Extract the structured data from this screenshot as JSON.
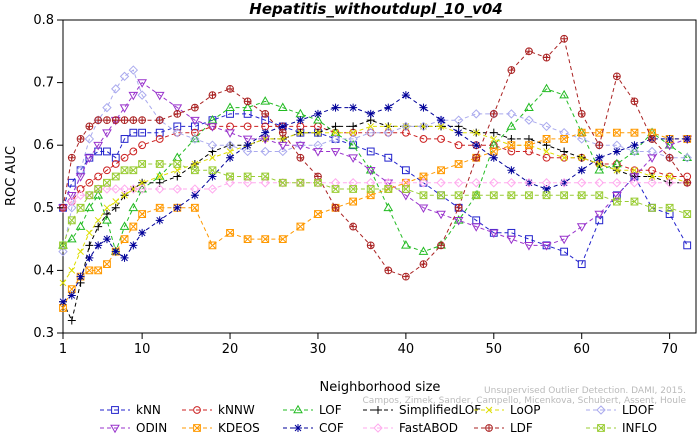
{
  "chart_data": {
    "type": "line",
    "title": "Hepatitis_withoutdupl_10_v04",
    "xlabel": "Neighborhood size",
    "ylabel": "ROC AUC",
    "xlim": [
      1,
      73
    ],
    "ylim": [
      0.3,
      0.8
    ],
    "x_ticks": [
      "1",
      "10",
      "20",
      "30",
      "40",
      "50",
      "60",
      "70"
    ],
    "x_tick_values": [
      1,
      10,
      20,
      30,
      40,
      50,
      60,
      70
    ],
    "y_ticks": [
      "0.3",
      "0.4",
      "0.5",
      "0.6",
      "0.7",
      "0.8"
    ],
    "y_tick_values": [
      0.3,
      0.4,
      0.5,
      0.6,
      0.7,
      0.8
    ],
    "grid": false,
    "legend_position": "bottom",
    "watermark": [
      "Unsupervised Outlier Detection. DAMI, 2015.",
      "Campos, Zimek, Sander, Campello, Micenkova, Schubert, Assent, Houle"
    ],
    "series": [
      {
        "name": "kNN",
        "color": "#2222cc",
        "marker": "square",
        "x": [
          1,
          2,
          3,
          4,
          5,
          6,
          7,
          8,
          9,
          10,
          12,
          14,
          16,
          18,
          20,
          22,
          24,
          26,
          28,
          30,
          32,
          34,
          36,
          38,
          40,
          42,
          44,
          46,
          48,
          50,
          52,
          54,
          56,
          58,
          60,
          62,
          64,
          66,
          68,
          70,
          72
        ],
        "y": [
          0.5,
          0.54,
          0.56,
          0.58,
          0.59,
          0.59,
          0.58,
          0.61,
          0.62,
          0.62,
          0.62,
          0.63,
          0.63,
          0.64,
          0.65,
          0.65,
          0.64,
          0.63,
          0.62,
          0.62,
          0.61,
          0.6,
          0.59,
          0.58,
          0.56,
          0.54,
          0.52,
          0.5,
          0.48,
          0.46,
          0.46,
          0.45,
          0.44,
          0.43,
          0.41,
          0.48,
          0.52,
          0.55,
          0.5,
          0.49,
          0.44
        ]
      },
      {
        "name": "kNNW",
        "color": "#cc2222",
        "marker": "circle",
        "x": [
          1,
          2,
          3,
          4,
          5,
          6,
          7,
          8,
          9,
          10,
          12,
          14,
          16,
          18,
          20,
          22,
          24,
          26,
          28,
          30,
          32,
          34,
          36,
          38,
          40,
          42,
          44,
          46,
          48,
          50,
          52,
          54,
          56,
          58,
          60,
          62,
          64,
          66,
          68,
          70,
          72
        ],
        "y": [
          0.5,
          0.51,
          0.53,
          0.54,
          0.55,
          0.56,
          0.57,
          0.58,
          0.59,
          0.6,
          0.61,
          0.62,
          0.62,
          0.63,
          0.63,
          0.63,
          0.63,
          0.63,
          0.63,
          0.63,
          0.62,
          0.62,
          0.62,
          0.62,
          0.62,
          0.61,
          0.61,
          0.6,
          0.6,
          0.6,
          0.59,
          0.59,
          0.58,
          0.58,
          0.58,
          0.57,
          0.57,
          0.56,
          0.56,
          0.55,
          0.55
        ]
      },
      {
        "name": "LOF",
        "color": "#22bb22",
        "marker": "triangle-up",
        "x": [
          1,
          2,
          3,
          4,
          5,
          6,
          7,
          8,
          9,
          10,
          12,
          14,
          16,
          18,
          20,
          22,
          24,
          26,
          28,
          30,
          32,
          34,
          36,
          38,
          40,
          42,
          44,
          46,
          48,
          50,
          52,
          54,
          56,
          58,
          60,
          62,
          64,
          66,
          68,
          70,
          72
        ],
        "y": [
          0.44,
          0.45,
          0.47,
          0.5,
          0.52,
          0.48,
          0.43,
          0.47,
          0.5,
          0.53,
          0.55,
          0.58,
          0.61,
          0.64,
          0.66,
          0.66,
          0.67,
          0.66,
          0.65,
          0.64,
          0.62,
          0.6,
          0.56,
          0.5,
          0.44,
          0.43,
          0.44,
          0.48,
          0.52,
          0.6,
          0.63,
          0.66,
          0.69,
          0.68,
          0.62,
          0.56,
          0.57,
          0.59,
          0.62,
          0.6,
          0.58
        ]
      },
      {
        "name": "SimplifiedLOF",
        "color": "#000000",
        "marker": "plus",
        "x": [
          1,
          2,
          3,
          4,
          5,
          6,
          7,
          8,
          9,
          10,
          12,
          14,
          16,
          18,
          20,
          22,
          24,
          26,
          28,
          30,
          32,
          34,
          36,
          38,
          40,
          42,
          44,
          46,
          48,
          50,
          52,
          54,
          56,
          58,
          60,
          62,
          64,
          66,
          68,
          70,
          72
        ],
        "y": [
          0.35,
          0.32,
          0.38,
          0.44,
          0.47,
          0.49,
          0.5,
          0.52,
          0.53,
          0.54,
          0.54,
          0.55,
          0.57,
          0.59,
          0.6,
          0.6,
          0.61,
          0.61,
          0.62,
          0.62,
          0.63,
          0.63,
          0.64,
          0.63,
          0.63,
          0.63,
          0.63,
          0.63,
          0.62,
          0.62,
          0.61,
          0.61,
          0.6,
          0.59,
          0.58,
          0.57,
          0.56,
          0.55,
          0.55,
          0.54,
          0.54
        ]
      },
      {
        "name": "LoOP",
        "color": "#dddd00",
        "marker": "x",
        "x": [
          1,
          2,
          3,
          4,
          5,
          6,
          7,
          8,
          9,
          10,
          12,
          14,
          16,
          18,
          20,
          22,
          24,
          26,
          28,
          30,
          32,
          34,
          36,
          38,
          40,
          42,
          44,
          46,
          48,
          50,
          52,
          54,
          56,
          58,
          60,
          62,
          64,
          66,
          68,
          70,
          72
        ],
        "y": [
          0.38,
          0.4,
          0.43,
          0.46,
          0.48,
          0.5,
          0.51,
          0.52,
          0.53,
          0.54,
          0.55,
          0.56,
          0.57,
          0.58,
          0.59,
          0.6,
          0.61,
          0.61,
          0.62,
          0.62,
          0.62,
          0.62,
          0.63,
          0.63,
          0.63,
          0.63,
          0.63,
          0.62,
          0.62,
          0.61,
          0.6,
          0.6,
          0.59,
          0.58,
          0.58,
          0.57,
          0.56,
          0.56,
          0.55,
          0.55,
          0.54
        ]
      },
      {
        "name": "LDOF",
        "color": "#aaaaee",
        "marker": "diamond",
        "x": [
          1,
          2,
          3,
          4,
          5,
          6,
          7,
          8,
          9,
          10,
          12,
          14,
          16,
          18,
          20,
          22,
          24,
          26,
          28,
          30,
          32,
          34,
          36,
          38,
          40,
          42,
          44,
          46,
          48,
          50,
          52,
          54,
          56,
          58,
          60,
          62,
          64,
          66,
          68,
          70,
          72
        ],
        "y": [
          0.43,
          0.5,
          0.56,
          0.61,
          0.64,
          0.66,
          0.69,
          0.71,
          0.72,
          0.68,
          0.64,
          0.62,
          0.61,
          0.6,
          0.6,
          0.59,
          0.59,
          0.59,
          0.6,
          0.6,
          0.61,
          0.61,
          0.62,
          0.62,
          0.63,
          0.63,
          0.64,
          0.64,
          0.65,
          0.65,
          0.65,
          0.64,
          0.63,
          0.62,
          0.61,
          0.6,
          0.6,
          0.59,
          0.59,
          0.58,
          0.58
        ]
      },
      {
        "name": "ODIN",
        "color": "#9933cc",
        "marker": "triangle-down",
        "x": [
          1,
          2,
          3,
          4,
          5,
          6,
          7,
          8,
          9,
          10,
          12,
          14,
          16,
          18,
          20,
          22,
          24,
          26,
          28,
          30,
          32,
          34,
          36,
          38,
          40,
          42,
          44,
          46,
          48,
          50,
          52,
          54,
          56,
          58,
          60,
          62,
          64,
          66,
          68,
          70,
          72
        ],
        "y": [
          0.5,
          0.52,
          0.55,
          0.58,
          0.6,
          0.62,
          0.64,
          0.66,
          0.68,
          0.7,
          0.68,
          0.66,
          0.64,
          0.63,
          0.62,
          0.61,
          0.61,
          0.6,
          0.6,
          0.59,
          0.59,
          0.58,
          0.56,
          0.54,
          0.52,
          0.5,
          0.49,
          0.48,
          0.47,
          0.46,
          0.45,
          0.44,
          0.44,
          0.45,
          0.47,
          0.49,
          0.52,
          0.55,
          0.58,
          0.6,
          0.61
        ]
      },
      {
        "name": "KDEOS",
        "color": "#ff9900",
        "marker": "square-x",
        "x": [
          1,
          2,
          3,
          4,
          5,
          6,
          7,
          8,
          9,
          10,
          12,
          14,
          16,
          18,
          20,
          22,
          24,
          26,
          28,
          30,
          32,
          34,
          36,
          38,
          40,
          42,
          44,
          46,
          48,
          50,
          52,
          54,
          56,
          58,
          60,
          62,
          64,
          66,
          68,
          70,
          72
        ],
        "y": [
          0.34,
          0.37,
          0.39,
          0.4,
          0.4,
          0.41,
          0.43,
          0.45,
          0.47,
          0.49,
          0.5,
          0.5,
          0.5,
          0.44,
          0.46,
          0.45,
          0.45,
          0.45,
          0.47,
          0.49,
          0.5,
          0.51,
          0.52,
          0.53,
          0.54,
          0.55,
          0.56,
          0.57,
          0.58,
          0.59,
          0.6,
          0.6,
          0.61,
          0.61,
          0.62,
          0.62,
          0.62,
          0.62,
          0.62,
          0.61,
          0.61
        ]
      },
      {
        "name": "COF",
        "color": "#000099",
        "marker": "asterisk",
        "x": [
          1,
          2,
          3,
          4,
          5,
          6,
          7,
          8,
          9,
          10,
          12,
          14,
          16,
          18,
          20,
          22,
          24,
          26,
          28,
          30,
          32,
          34,
          36,
          38,
          40,
          42,
          44,
          46,
          48,
          50,
          52,
          54,
          56,
          58,
          60,
          62,
          64,
          66,
          68,
          70,
          72
        ],
        "y": [
          0.35,
          0.36,
          0.39,
          0.42,
          0.44,
          0.45,
          0.43,
          0.42,
          0.44,
          0.46,
          0.48,
          0.5,
          0.52,
          0.55,
          0.58,
          0.6,
          0.62,
          0.63,
          0.64,
          0.65,
          0.66,
          0.66,
          0.65,
          0.66,
          0.68,
          0.66,
          0.64,
          0.62,
          0.6,
          0.58,
          0.56,
          0.54,
          0.53,
          0.54,
          0.56,
          0.58,
          0.59,
          0.6,
          0.61,
          0.61,
          0.61
        ]
      },
      {
        "name": "FastABOD",
        "color": "#ffaaee",
        "marker": "diamond",
        "x": [
          1,
          2,
          3,
          4,
          5,
          6,
          7,
          8,
          9,
          10,
          12,
          14,
          16,
          18,
          20,
          22,
          24,
          26,
          28,
          30,
          32,
          34,
          36,
          38,
          40,
          42,
          44,
          46,
          48,
          50,
          52,
          54,
          56,
          58,
          60,
          62,
          64,
          66,
          68,
          70,
          72
        ],
        "y": [
          0.5,
          0.51,
          0.52,
          0.52,
          0.53,
          0.53,
          0.53,
          0.53,
          0.53,
          0.53,
          0.53,
          0.53,
          0.53,
          0.53,
          0.54,
          0.54,
          0.54,
          0.54,
          0.54,
          0.54,
          0.54,
          0.54,
          0.54,
          0.54,
          0.54,
          0.54,
          0.54,
          0.54,
          0.54,
          0.54,
          0.54,
          0.54,
          0.54,
          0.54,
          0.54,
          0.54,
          0.54,
          0.54,
          0.54,
          0.54,
          0.54
        ]
      },
      {
        "name": "LDF",
        "color": "#aa2222",
        "marker": "circle-plus",
        "x": [
          1,
          2,
          3,
          4,
          5,
          6,
          7,
          8,
          9,
          10,
          12,
          14,
          16,
          18,
          20,
          22,
          24,
          26,
          28,
          30,
          32,
          34,
          36,
          38,
          40,
          42,
          44,
          46,
          48,
          50,
          52,
          54,
          56,
          58,
          60,
          62,
          64,
          66,
          68,
          70,
          72
        ],
        "y": [
          0.5,
          0.58,
          0.61,
          0.63,
          0.64,
          0.64,
          0.64,
          0.64,
          0.64,
          0.64,
          0.64,
          0.65,
          0.66,
          0.68,
          0.69,
          0.67,
          0.65,
          0.62,
          0.58,
          0.55,
          0.5,
          0.47,
          0.44,
          0.4,
          0.39,
          0.41,
          0.44,
          0.5,
          0.58,
          0.65,
          0.72,
          0.75,
          0.74,
          0.77,
          0.65,
          0.6,
          0.71,
          0.67,
          0.61,
          0.58,
          0.54
        ]
      },
      {
        "name": "INFLO",
        "color": "#99cc33",
        "marker": "square-x",
        "x": [
          1,
          2,
          3,
          4,
          5,
          6,
          7,
          8,
          9,
          10,
          12,
          14,
          16,
          18,
          20,
          22,
          24,
          26,
          28,
          30,
          32,
          34,
          36,
          38,
          40,
          42,
          44,
          46,
          48,
          50,
          52,
          54,
          56,
          58,
          60,
          62,
          64,
          66,
          68,
          70,
          72
        ],
        "y": [
          0.44,
          0.48,
          0.5,
          0.52,
          0.53,
          0.54,
          0.55,
          0.56,
          0.56,
          0.57,
          0.57,
          0.57,
          0.56,
          0.56,
          0.55,
          0.55,
          0.55,
          0.54,
          0.54,
          0.54,
          0.53,
          0.53,
          0.53,
          0.53,
          0.53,
          0.52,
          0.52,
          0.52,
          0.52,
          0.52,
          0.52,
          0.52,
          0.52,
          0.52,
          0.52,
          0.52,
          0.51,
          0.51,
          0.5,
          0.5,
          0.49
        ]
      }
    ]
  }
}
